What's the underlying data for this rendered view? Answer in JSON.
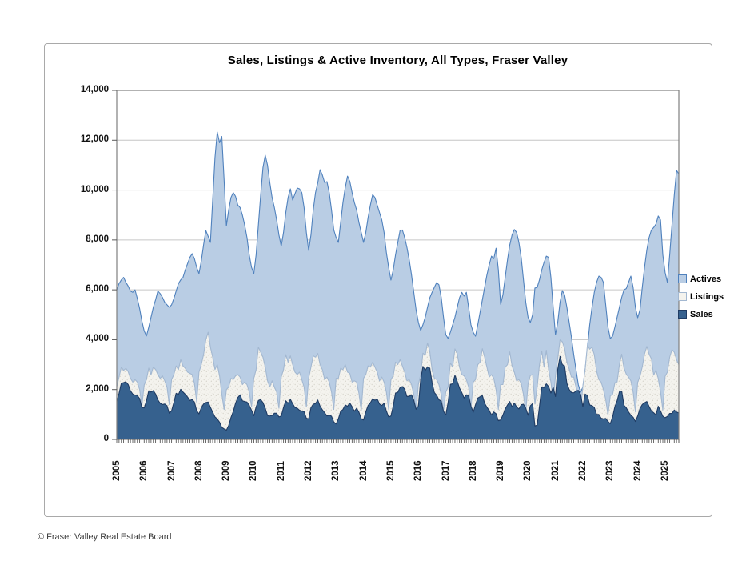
{
  "page": {
    "footer": "© Fraser Valley Real Estate Board"
  },
  "legend": {
    "items": [
      {
        "label": "Actives"
      },
      {
        "label": "Listings"
      },
      {
        "label": "Sales"
      }
    ]
  },
  "chart_data": {
    "type": "area",
    "title": "Sales, Listings & Active Inventory, All Types, Fraser Valley",
    "subtitle": "",
    "xlabel": "",
    "ylabel": "",
    "x_start": "2005-01",
    "x_end": "2025-07",
    "x_frequency": "monthly",
    "x_tick_labels": [
      "2005",
      "2006",
      "2007",
      "2008",
      "2009",
      "2010",
      "2011",
      "2012",
      "2013",
      "2014",
      "2015",
      "2016",
      "2017",
      "2018",
      "2019",
      "2020",
      "2021",
      "2022",
      "2023",
      "2024",
      "2025"
    ],
    "ylim": [
      0,
      14000
    ],
    "y_ticks": [
      0,
      2000,
      4000,
      6000,
      8000,
      10000,
      12000,
      14000
    ],
    "y_tick_labels_top_to_bottom": [
      "14,000",
      "12,000",
      "10,000",
      "8,000",
      "6,000",
      "4,000",
      "2,000",
      "0"
    ],
    "grid": true,
    "legend_position": "right",
    "mode": "overlapping-not-stacked",
    "colors": {
      "grid": "#c6c6c6",
      "plot_border": "#7f7f7f",
      "tick": "#595959"
    },
    "series": [
      {
        "name": "Actives",
        "fill": "#B9CDE4",
        "stroke": "#4F81BD",
        "values": [
          6000,
          6250,
          6400,
          6500,
          6300,
          6150,
          5950,
          5900,
          6000,
          5650,
          5250,
          4750,
          4350,
          4150,
          4500,
          4900,
          5300,
          5600,
          5950,
          5850,
          5700,
          5500,
          5400,
          5300,
          5400,
          5650,
          5950,
          6250,
          6400,
          6500,
          6800,
          7050,
          7300,
          7450,
          7250,
          6900,
          6650,
          7150,
          7800,
          8380,
          8150,
          7900,
          9600,
          11300,
          12330,
          11900,
          12150,
          10400,
          8570,
          9200,
          9700,
          9900,
          9750,
          9400,
          9300,
          9000,
          8600,
          8100,
          7400,
          6900,
          6650,
          7400,
          8600,
          9800,
          10900,
          11400,
          11000,
          10300,
          9700,
          9300,
          8800,
          8200,
          7750,
          8300,
          9100,
          9700,
          10050,
          9600,
          9850,
          10080,
          10050,
          9900,
          9300,
          8300,
          7580,
          8200,
          9200,
          9900,
          10300,
          10820,
          10600,
          10300,
          10340,
          9900,
          9200,
          8400,
          8100,
          7900,
          8700,
          9500,
          10100,
          10560,
          10350,
          9900,
          9500,
          9200,
          8700,
          8300,
          7900,
          8300,
          8900,
          9400,
          9820,
          9700,
          9400,
          9100,
          8800,
          8300,
          7500,
          6900,
          6390,
          6800,
          7400,
          7900,
          8380,
          8400,
          8100,
          7700,
          7200,
          6600,
          5900,
          5200,
          4700,
          4370,
          4600,
          4900,
          5300,
          5680,
          5900,
          6100,
          6290,
          6200,
          5700,
          4900,
          4200,
          4050,
          4300,
          4600,
          4900,
          5300,
          5680,
          5900,
          5750,
          5900,
          5300,
          4600,
          4300,
          4140,
          4600,
          5100,
          5600,
          6100,
          6600,
          7000,
          7350,
          7250,
          7670,
          6800,
          5420,
          5800,
          6500,
          7200,
          7800,
          8200,
          8420,
          8300,
          7900,
          7300,
          6400,
          5500,
          4900,
          4690,
          5000,
          6070,
          6100,
          6400,
          6800,
          7100,
          7350,
          7300,
          6500,
          5300,
          4200,
          4700,
          5500,
          5970,
          5800,
          5300,
          4700,
          4100,
          3400,
          2800,
          2200,
          1890,
          2100,
          2800,
          3700,
          4600,
          5300,
          5900,
          6300,
          6550,
          6500,
          6300,
          5400,
          4500,
          4050,
          4140,
          4500,
          4900,
          5300,
          5700,
          6000,
          6050,
          6300,
          6550,
          6100,
          5300,
          4880,
          5200,
          6100,
          6900,
          7600,
          8100,
          8400,
          8500,
          8640,
          8960,
          8800,
          7400,
          6700,
          6290,
          7400,
          8600,
          9800,
          10790,
          10650
        ]
      },
      {
        "name": "Listings",
        "fill": "#F4F3EE",
        "stroke": "#A3B8D1",
        "texture": "speckled",
        "values": [
          2110,
          2500,
          2900,
          2770,
          2850,
          2720,
          2450,
          2300,
          2400,
          2300,
          2000,
          1350,
          2180,
          2400,
          2860,
          2600,
          2900,
          2810,
          2600,
          2450,
          2550,
          2350,
          2100,
          1400,
          2400,
          2600,
          2950,
          2800,
          3200,
          2950,
          2850,
          2700,
          2650,
          2600,
          2250,
          1500,
          2700,
          3000,
          3400,
          4000,
          4300,
          3700,
          3300,
          2800,
          3000,
          2550,
          1800,
          1200,
          2000,
          2100,
          2450,
          2400,
          2550,
          2600,
          2500,
          2200,
          2300,
          2200,
          1900,
          1300,
          2450,
          2800,
          3700,
          3500,
          3300,
          2900,
          2350,
          2100,
          2350,
          2100,
          1900,
          1250,
          2500,
          2800,
          3400,
          3100,
          3350,
          3000,
          2700,
          2600,
          2700,
          2400,
          2100,
          1300,
          2450,
          2900,
          3350,
          3300,
          3450,
          3000,
          2800,
          2400,
          2500,
          2300,
          1900,
          1200,
          2450,
          2450,
          2850,
          2800,
          3000,
          2700,
          2650,
          2300,
          2350,
          2300,
          1850,
          1150,
          2450,
          2600,
          2950,
          2900,
          3100,
          2900,
          2700,
          2350,
          2500,
          2300,
          1900,
          1200,
          2400,
          2550,
          3100,
          3000,
          3200,
          2950,
          2700,
          2350,
          2400,
          2200,
          1800,
          1150,
          2200,
          2600,
          3460,
          3380,
          3870,
          3520,
          2800,
          2450,
          2400,
          2200,
          1800,
          1150,
          1900,
          2100,
          3070,
          2900,
          3630,
          3440,
          2900,
          2600,
          2550,
          2400,
          2100,
          1250,
          2300,
          2400,
          3000,
          3100,
          3640,
          3300,
          2900,
          2500,
          2600,
          2450,
          2000,
          1200,
          2200,
          2200,
          2900,
          3000,
          3510,
          2950,
          2700,
          2350,
          2400,
          2250,
          1800,
          1100,
          2220,
          2560,
          2600,
          1420,
          2100,
          3000,
          3550,
          2900,
          3580,
          2800,
          2300,
          1500,
          2560,
          3250,
          3990,
          3920,
          3650,
          3110,
          2830,
          2500,
          2500,
          2100,
          1800,
          1130,
          2140,
          2800,
          3790,
          3620,
          3700,
          3400,
          2740,
          2400,
          2300,
          2000,
          1600,
          980,
          1750,
          1800,
          2270,
          2310,
          3000,
          3420,
          2860,
          2620,
          2500,
          2350,
          1900,
          1100,
          2290,
          2530,
          2910,
          3430,
          3730,
          3420,
          3230,
          2580,
          2780,
          2440,
          1900,
          1180,
          2530,
          2700,
          3300,
          3600,
          3500,
          3200,
          3000
        ]
      },
      {
        "name": "Sales",
        "fill": "#36618E",
        "stroke": "#1F3B63",
        "values": [
          1520,
          1850,
          2250,
          2280,
          2310,
          2200,
          1950,
          1820,
          1780,
          1760,
          1640,
          1280,
          1260,
          1550,
          1950,
          1900,
          1960,
          1820,
          1580,
          1450,
          1400,
          1420,
          1350,
          1050,
          1150,
          1480,
          1850,
          1800,
          2010,
          1900,
          1810,
          1700,
          1560,
          1600,
          1500,
          1150,
          1020,
          1270,
          1420,
          1480,
          1500,
          1290,
          1090,
          900,
          820,
          690,
          480,
          420,
          370,
          560,
          880,
          1120,
          1450,
          1680,
          1790,
          1550,
          1520,
          1500,
          1360,
          1170,
          950,
          1300,
          1560,
          1600,
          1480,
          1250,
          960,
          940,
          960,
          1050,
          1050,
          900,
          940,
          1280,
          1550,
          1450,
          1610,
          1430,
          1280,
          1250,
          1170,
          1140,
          1110,
          850,
          820,
          1270,
          1410,
          1440,
          1580,
          1330,
          1190,
          1070,
          940,
          970,
          930,
          700,
          620,
          820,
          1130,
          1200,
          1380,
          1330,
          1460,
          1310,
          1130,
          1250,
          1090,
          830,
          780,
          1100,
          1360,
          1470,
          1630,
          1570,
          1620,
          1420,
          1360,
          1450,
          1140,
          900,
          940,
          1340,
          1860,
          1890,
          2080,
          2120,
          2020,
          1720,
          1730,
          1790,
          1570,
          1210,
          1340,
          2390,
          2930,
          2770,
          2910,
          2860,
          2280,
          1880,
          1770,
          1590,
          1540,
          1130,
          980,
          1480,
          2210,
          2230,
          2570,
          2330,
          2060,
          1880,
          1660,
          1790,
          1740,
          1340,
          1090,
          1390,
          1660,
          1710,
          1760,
          1450,
          1290,
          1160,
          980,
          1100,
          1030,
          750,
          780,
          980,
          1220,
          1380,
          1520,
          1310,
          1460,
          1300,
          1220,
          1390,
          1410,
          1250,
          970,
          1350,
          1440,
          540,
          570,
          1330,
          2100,
          2080,
          2230,
          2120,
          1860,
          2090,
          1720,
          2820,
          3330,
          3000,
          2950,
          2250,
          2010,
          1880,
          1870,
          1940,
          1970,
          1810,
          1310,
          1820,
          1760,
          1380,
          1360,
          1280,
          1000,
          1000,
          850,
          820,
          840,
          720,
          630,
          900,
          1310,
          1550,
          1910,
          1940,
          1370,
          1270,
          1100,
          970,
          890,
          720,
          940,
          1240,
          1400,
          1470,
          1520,
          1320,
          1140,
          1070,
          980,
          1330,
          1140,
          930,
          870,
          920,
          1040,
          1040,
          1180,
          1100,
          1060
        ]
      }
    ]
  }
}
